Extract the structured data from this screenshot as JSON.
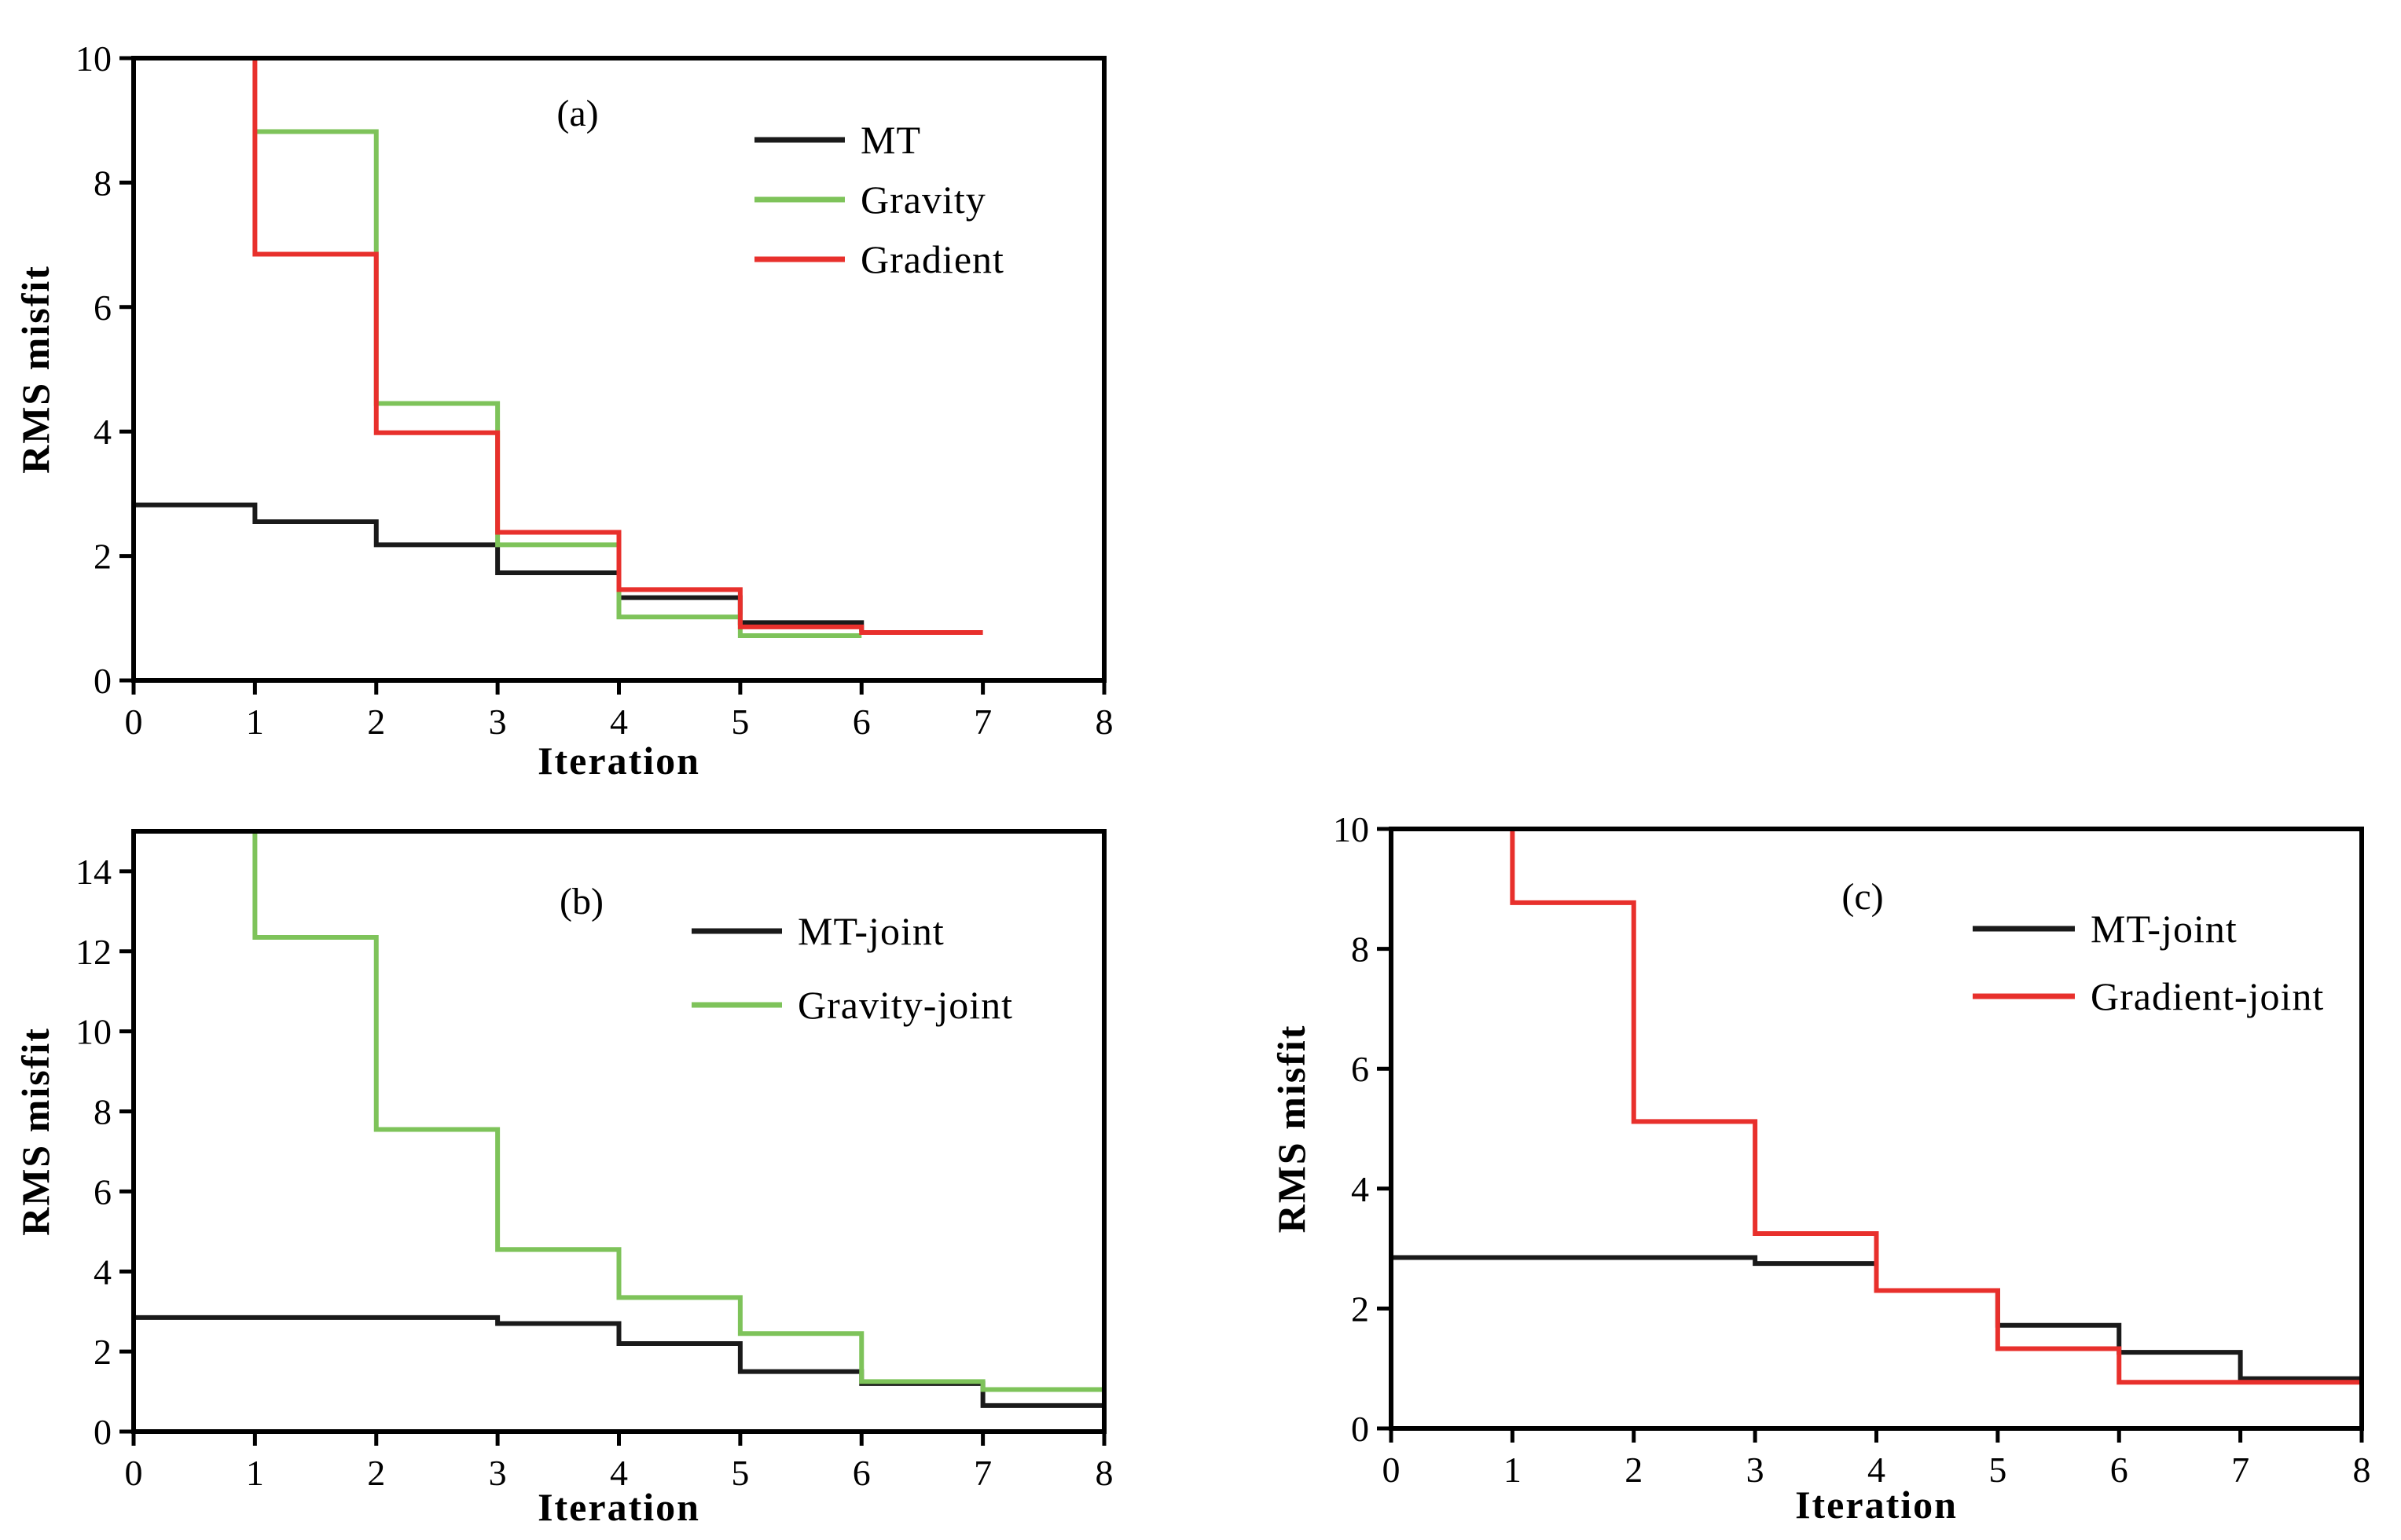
{
  "chart_data": [
    {
      "type": "line",
      "step": true,
      "panel_label": "(a)",
      "xlabel": "Iteration",
      "ylabel": "RMS misfit",
      "xlim": [
        0,
        8
      ],
      "ylim": [
        0,
        10
      ],
      "xticks": [
        0,
        1,
        2,
        3,
        4,
        5,
        6,
        7,
        8
      ],
      "yticks": [
        0,
        2,
        4,
        6,
        8,
        10
      ],
      "legend_position": "top-right",
      "series": [
        {
          "name": "MT",
          "color": "#1a1a1a",
          "x": [
            0,
            1,
            2,
            3,
            4,
            5,
            6
          ],
          "values": [
            2.82,
            2.55,
            2.18,
            1.73,
            1.33,
            0.93,
            0.78
          ]
        },
        {
          "name": "Gravity",
          "color": "#7ec35a",
          "x": [
            1,
            2,
            3,
            4,
            5,
            6
          ],
          "values": [
            8.82,
            4.45,
            2.18,
            1.02,
            0.72,
            0.72
          ]
        },
        {
          "name": "Gradient",
          "color": "#e8302c",
          "x": [
            1,
            2,
            3,
            4,
            5,
            6,
            7
          ],
          "values": [
            6.85,
            3.98,
            2.38,
            1.46,
            0.86,
            0.77,
            0.77
          ],
          "start": 10
        }
      ]
    },
    {
      "type": "line",
      "step": true,
      "panel_label": "(b)",
      "xlabel": "Iteration",
      "ylabel": "RMS misfit",
      "xlim": [
        0,
        8
      ],
      "ylim": [
        0,
        15
      ],
      "xticks": [
        0,
        1,
        2,
        3,
        4,
        5,
        6,
        7,
        8
      ],
      "yticks": [
        0,
        2,
        4,
        6,
        8,
        10,
        12,
        14
      ],
      "legend_position": "top-right",
      "series": [
        {
          "name": "MT-joint",
          "color": "#1a1a1a",
          "x": [
            0,
            3,
            4,
            5,
            6,
            7,
            8
          ],
          "values": [
            2.85,
            2.7,
            2.2,
            1.5,
            1.2,
            0.65,
            0.65
          ]
        },
        {
          "name": "Gravity-joint",
          "color": "#7ec35a",
          "x": [
            1,
            2,
            3,
            4,
            5,
            6,
            7,
            8
          ],
          "values": [
            12.35,
            7.55,
            4.55,
            3.35,
            2.45,
            1.25,
            1.05,
            1.05
          ],
          "start": 15
        }
      ]
    },
    {
      "type": "line",
      "step": true,
      "panel_label": "(c)",
      "xlabel": "Iteration",
      "ylabel": "RMS misfit",
      "xlim": [
        0,
        8
      ],
      "ylim": [
        0,
        10
      ],
      "xticks": [
        0,
        1,
        2,
        3,
        4,
        5,
        6,
        7,
        8
      ],
      "yticks": [
        0,
        2,
        4,
        6,
        8,
        10
      ],
      "legend_position": "top-right",
      "series": [
        {
          "name": "MT-joint",
          "color": "#1a1a1a",
          "x": [
            0,
            3,
            4,
            5,
            6,
            7,
            8
          ],
          "values": [
            2.85,
            2.75,
            2.3,
            1.72,
            1.27,
            0.83,
            0.83
          ]
        },
        {
          "name": "Gradient-joint",
          "color": "#e8302c",
          "x": [
            1,
            2,
            3,
            4,
            5,
            6,
            8
          ],
          "values": [
            8.77,
            5.12,
            3.25,
            2.3,
            1.33,
            0.77,
            0.77
          ],
          "start": 10
        }
      ]
    }
  ]
}
